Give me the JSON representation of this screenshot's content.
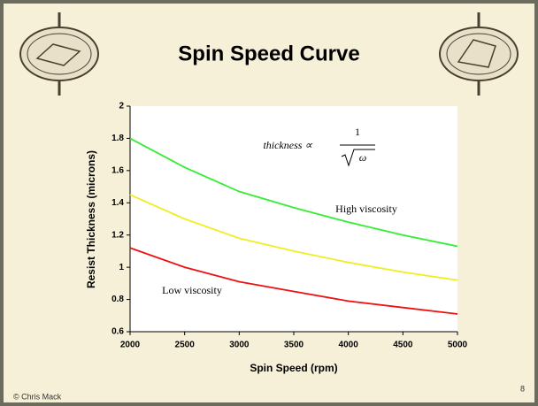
{
  "chart_data": {
    "type": "line",
    "title": "Spin Speed Curve",
    "x_label": "Spin Speed (rpm)",
    "y_label": "Resist Thickness (microns)",
    "x": [
      2000,
      2500,
      3000,
      3500,
      4000,
      4500,
      5000
    ],
    "series": [
      {
        "name": "High viscosity",
        "color": "#33ee33",
        "values": [
          1.8,
          1.62,
          1.47,
          1.37,
          1.28,
          1.2,
          1.13
        ]
      },
      {
        "color": "#eeee22",
        "values": [
          1.45,
          1.3,
          1.18,
          1.1,
          1.03,
          0.97,
          0.92
        ]
      },
      {
        "name": "Low viscosity",
        "color": "#ee1111",
        "values": [
          1.12,
          1.0,
          0.91,
          0.85,
          0.79,
          0.75,
          0.71
        ]
      }
    ],
    "xlim": [
      2000,
      5000
    ],
    "xticks": [
      2000,
      2500,
      3000,
      3500,
      4000,
      4500,
      5000
    ],
    "ylim": [
      0.6,
      2
    ],
    "yticks": [
      0.6,
      0.8,
      1,
      1.2,
      1.4,
      1.6,
      1.8,
      2
    ],
    "formula": {
      "lhs": "thickness ∝",
      "numerator": "1",
      "denominator": "ω"
    }
  },
  "footer": {
    "credit": "© Chris Mack",
    "page": "8"
  }
}
